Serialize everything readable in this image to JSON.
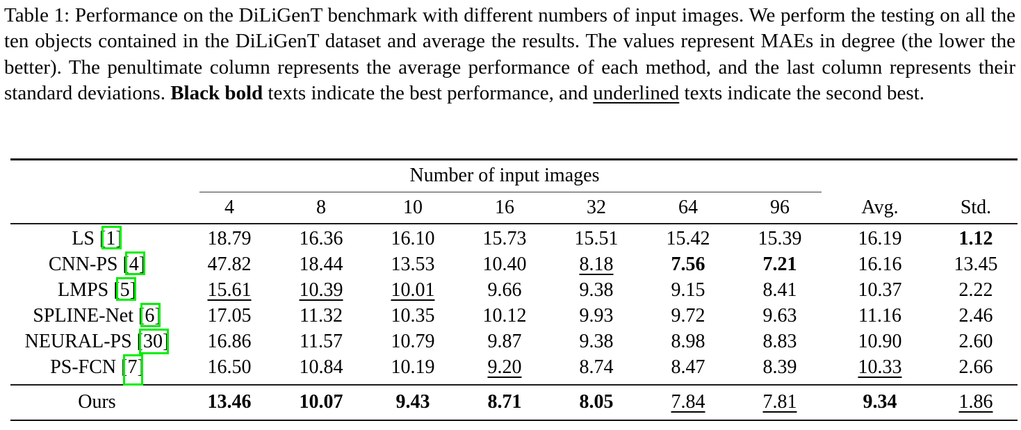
{
  "colors": {
    "citation_box": "#00EE00",
    "rule": "#101010"
  },
  "caption": {
    "segments": [
      {
        "text": "Table 1: Performance on the DiLiGenT benchmark with different numbers of input images. We perform the testing on all the ten objects contained in the DiLiGenT dataset and average the results. The values represent MAEs in degree (the lower the better). The penultimate column represents the average performance of each method, and the last column represents their standard deviations. ",
        "style": "normal"
      },
      {
        "text": "Black bold",
        "style": "bold"
      },
      {
        "text": " texts indicate the best performance, and ",
        "style": "normal"
      },
      {
        "text": "underlined",
        "style": "underline"
      },
      {
        "text": " texts indicate the second best.",
        "style": "normal"
      }
    ]
  },
  "table": {
    "group_header": "Number of input images",
    "column_headers": [
      "4",
      "8",
      "10",
      "16",
      "32",
      "64",
      "96",
      "Avg.",
      "Std."
    ],
    "body_rows": [
      {
        "method": "LS",
        "cite": "1",
        "cells": [
          {
            "v": "18.79",
            "s": "n"
          },
          {
            "v": "16.36",
            "s": "n"
          },
          {
            "v": "16.10",
            "s": "n"
          },
          {
            "v": "15.73",
            "s": "n"
          },
          {
            "v": "15.51",
            "s": "n"
          },
          {
            "v": "15.42",
            "s": "n"
          },
          {
            "v": "15.39",
            "s": "n"
          },
          {
            "v": "16.19",
            "s": "n"
          },
          {
            "v": "1.12",
            "s": "b"
          }
        ]
      },
      {
        "method": "CNN-PS",
        "cite": "4",
        "cells": [
          {
            "v": "47.82",
            "s": "n"
          },
          {
            "v": "18.44",
            "s": "n"
          },
          {
            "v": "13.53",
            "s": "n"
          },
          {
            "v": "10.40",
            "s": "n"
          },
          {
            "v": "8.18",
            "s": "u"
          },
          {
            "v": "7.56",
            "s": "b"
          },
          {
            "v": "7.21",
            "s": "b"
          },
          {
            "v": "16.16",
            "s": "n"
          },
          {
            "v": "13.45",
            "s": "n"
          }
        ]
      },
      {
        "method": "LMPS",
        "cite": "5",
        "cells": [
          {
            "v": "15.61",
            "s": "u"
          },
          {
            "v": "10.39",
            "s": "u"
          },
          {
            "v": "10.01",
            "s": "u"
          },
          {
            "v": "9.66",
            "s": "n"
          },
          {
            "v": "9.38",
            "s": "n"
          },
          {
            "v": "9.15",
            "s": "n"
          },
          {
            "v": "8.41",
            "s": "n"
          },
          {
            "v": "10.37",
            "s": "n"
          },
          {
            "v": "2.22",
            "s": "n"
          }
        ]
      },
      {
        "method": "SPLINE-Net",
        "cite": "6",
        "cells": [
          {
            "v": "17.05",
            "s": "n"
          },
          {
            "v": "11.32",
            "s": "n"
          },
          {
            "v": "10.35",
            "s": "n"
          },
          {
            "v": "10.12",
            "s": "n"
          },
          {
            "v": "9.93",
            "s": "n"
          },
          {
            "v": "9.72",
            "s": "n"
          },
          {
            "v": "9.63",
            "s": "n"
          },
          {
            "v": "11.16",
            "s": "n"
          },
          {
            "v": "2.46",
            "s": "n"
          }
        ]
      },
      {
        "method": "NEURAL-PS",
        "cite": "30",
        "cells": [
          {
            "v": "16.86",
            "s": "n"
          },
          {
            "v": "11.57",
            "s": "n"
          },
          {
            "v": "10.79",
            "s": "n"
          },
          {
            "v": "9.87",
            "s": "n"
          },
          {
            "v": "9.38",
            "s": "n"
          },
          {
            "v": "8.98",
            "s": "n"
          },
          {
            "v": "8.83",
            "s": "n"
          },
          {
            "v": "10.90",
            "s": "n"
          },
          {
            "v": "2.60",
            "s": "n"
          }
        ]
      },
      {
        "method": "PS-FCN",
        "cite": "7",
        "cells": [
          {
            "v": "16.50",
            "s": "n"
          },
          {
            "v": "10.84",
            "s": "n"
          },
          {
            "v": "10.19",
            "s": "n"
          },
          {
            "v": "9.20",
            "s": "u"
          },
          {
            "v": "8.74",
            "s": "n"
          },
          {
            "v": "8.47",
            "s": "n"
          },
          {
            "v": "8.39",
            "s": "n"
          },
          {
            "v": "10.33",
            "s": "u"
          },
          {
            "v": "2.66",
            "s": "n"
          }
        ]
      }
    ],
    "final_row": {
      "method": "Ours",
      "cite": null,
      "cells": [
        {
          "v": "13.46",
          "s": "b"
        },
        {
          "v": "10.07",
          "s": "b"
        },
        {
          "v": "9.43",
          "s": "b"
        },
        {
          "v": "8.71",
          "s": "b"
        },
        {
          "v": "8.05",
          "s": "b"
        },
        {
          "v": "7.84",
          "s": "u"
        },
        {
          "v": "7.81",
          "s": "u"
        },
        {
          "v": "9.34",
          "s": "b"
        },
        {
          "v": "1.86",
          "s": "u"
        }
      ]
    }
  }
}
